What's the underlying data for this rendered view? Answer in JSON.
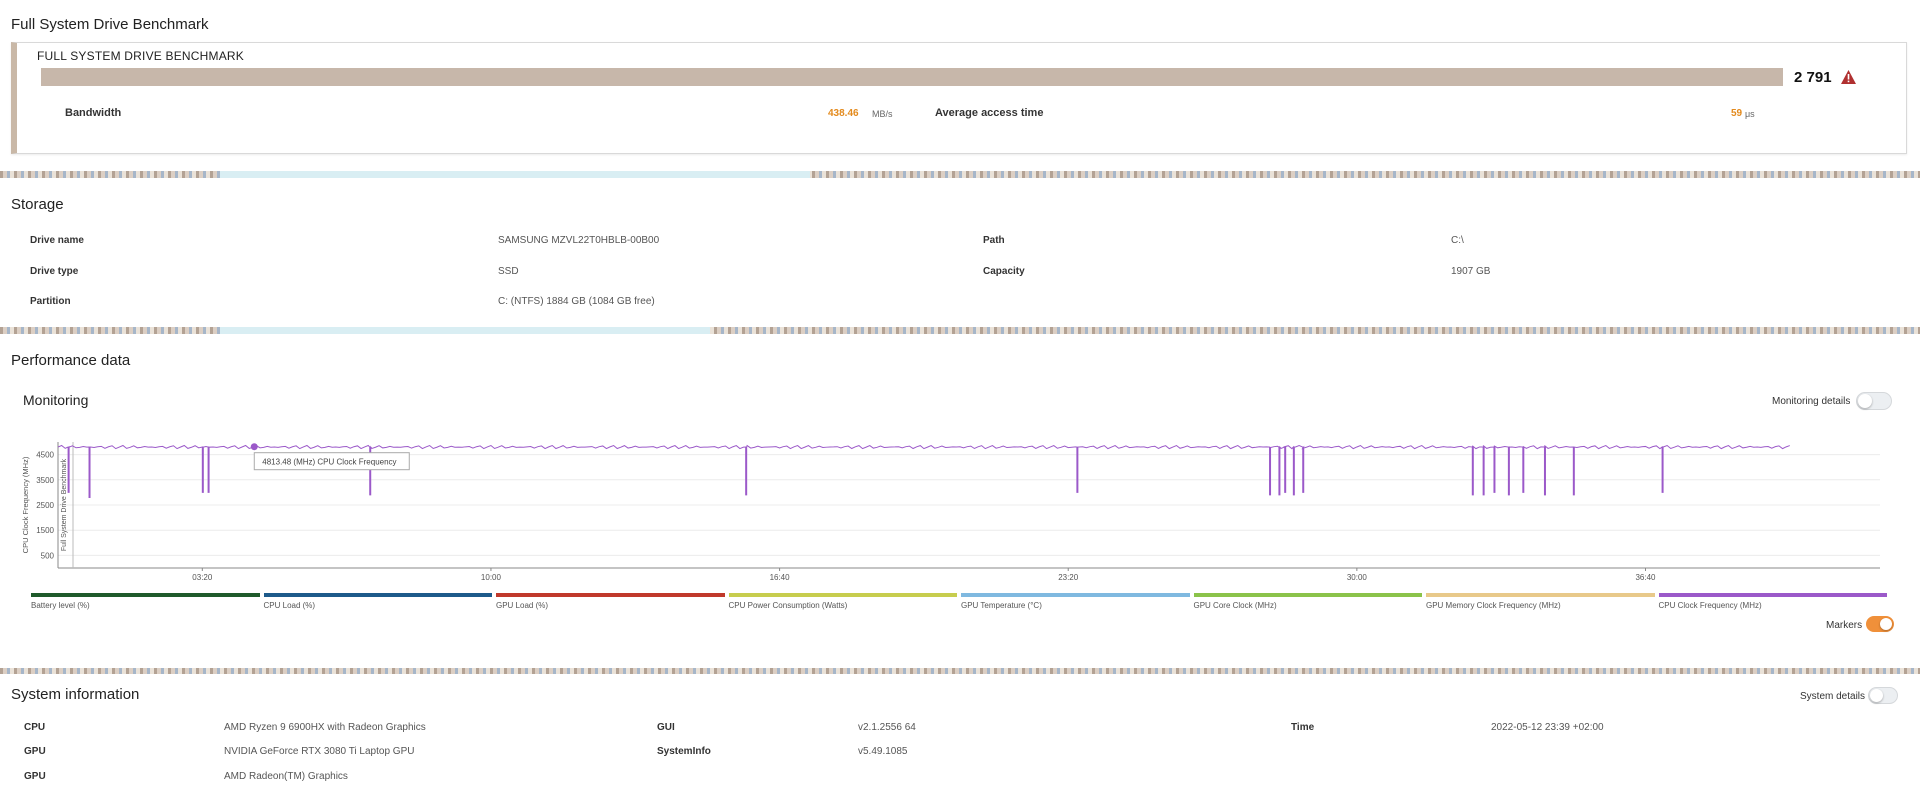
{
  "page_title": "Full System Drive Benchmark",
  "benchmark": {
    "card_title": "FULL SYSTEM DRIVE BENCHMARK",
    "score": "2 791",
    "warning_icon": "warning-triangle-icon",
    "bandwidth_label": "Bandwidth",
    "bandwidth_value": "438.46",
    "bandwidth_unit": "MB/s",
    "access_label": "Average access time",
    "access_value": "59",
    "access_unit": "μs",
    "accent_color": "#e38a1d"
  },
  "storage": {
    "title": "Storage",
    "rows": [
      {
        "label": "Drive name",
        "value": "SAMSUNG MZVL22T0HBLB-00B00"
      },
      {
        "label": "Drive type",
        "value": "SSD"
      },
      {
        "label": "Partition",
        "value": "C: (NTFS) 1884 GB (1084 GB free)"
      },
      {
        "label": "Path",
        "value": "C:\\"
      },
      {
        "label": "Capacity",
        "value": "1907 GB"
      }
    ]
  },
  "performance": {
    "title": "Performance data",
    "monitoring_title": "Monitoring",
    "monitoring_details_label": "Monitoring details",
    "markers_label": "Markers",
    "markers_on": true,
    "monitoring_details_on": false
  },
  "chart_data": {
    "type": "line",
    "ylabel": "CPU Clock Frequency (MHz)",
    "marker_label": "Full System Drive Benchmark",
    "yticks": [
      500,
      1500,
      2500,
      3500,
      4500
    ],
    "ylim": [
      0,
      5000
    ],
    "xticks": [
      "03:20",
      "10:00",
      "16:40",
      "23:20",
      "30:00",
      "36:40"
    ],
    "xlim_seconds": [
      0,
      2525
    ],
    "tooltip": "4813.48 (MHz) CPU Clock Frequency",
    "series": [
      {
        "name": "CPU Clock Frequency (MHz)",
        "color": "#9b59c9",
        "baseline": 4800,
        "dips": [
          {
            "t": 14,
            "v": 3000
          },
          {
            "t": 43,
            "v": 2800
          },
          {
            "t": 200,
            "v": 3000
          },
          {
            "t": 208,
            "v": 3000
          },
          {
            "t": 432,
            "v": 2900
          },
          {
            "t": 953,
            "v": 2900
          },
          {
            "t": 1412,
            "v": 3000
          },
          {
            "t": 1679,
            "v": 2900
          },
          {
            "t": 1692,
            "v": 2900
          },
          {
            "t": 1700,
            "v": 3000
          },
          {
            "t": 1712,
            "v": 2900
          },
          {
            "t": 1725,
            "v": 3000
          },
          {
            "t": 1960,
            "v": 2900
          },
          {
            "t": 1975,
            "v": 2900
          },
          {
            "t": 1990,
            "v": 3000
          },
          {
            "t": 2010,
            "v": 2900
          },
          {
            "t": 2030,
            "v": 3000
          },
          {
            "t": 2060,
            "v": 2900
          },
          {
            "t": 2100,
            "v": 2900
          },
          {
            "t": 2223,
            "v": 3000
          }
        ]
      }
    ]
  },
  "legend": [
    {
      "label": "Battery level (%)",
      "color": "#1f5a2b"
    },
    {
      "label": "CPU Load (%)",
      "color": "#1d5a8a"
    },
    {
      "label": "GPU Load (%)",
      "color": "#c0392b"
    },
    {
      "label": "CPU Power Consumption (Watts)",
      "color": "#c7cd4e"
    },
    {
      "label": "GPU Temperature (°C)",
      "color": "#7fb9e0"
    },
    {
      "label": "GPU Core Clock (MHz)",
      "color": "#8bc34a"
    },
    {
      "label": "GPU Memory Clock Frequency (MHz)",
      "color": "#e8c98a"
    },
    {
      "label": "CPU Clock Frequency (MHz)",
      "color": "#9b59c9"
    }
  ],
  "system": {
    "title": "System information",
    "details_label": "System details",
    "details_on": false,
    "rows": [
      {
        "label": "CPU",
        "value": "AMD Ryzen 9 6900HX with Radeon Graphics"
      },
      {
        "label": "GPU",
        "value": "NVIDIA GeForce RTX 3080 Ti Laptop GPU"
      },
      {
        "label": "GPU",
        "value": "AMD Radeon(TM) Graphics"
      },
      {
        "label": "GUI",
        "value": "v2.1.2556 64"
      },
      {
        "label": "SystemInfo",
        "value": "v5.49.1085"
      },
      {
        "label": "Time",
        "value": "2022-05-12 23:39 +02:00"
      }
    ]
  }
}
